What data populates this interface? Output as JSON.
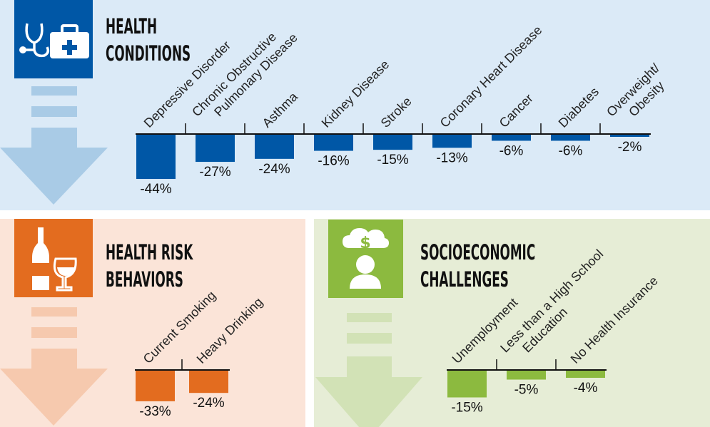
{
  "chart_data": [
    {
      "type": "bar",
      "title": "HEALTH CONDITIONS",
      "title_lines": [
        "HEALTH",
        "CONDITIONS"
      ],
      "color": "#0057a6",
      "icon": "stethoscope-medkit-icon",
      "categories": [
        [
          "Depressive Disorder"
        ],
        [
          "Chronic Obstructive",
          "Pulmonary Disease"
        ],
        [
          "Asthma"
        ],
        [
          "Kidney Disease"
        ],
        [
          "Stroke"
        ],
        [
          "Coronary Heart Disease"
        ],
        [
          "Cancer"
        ],
        [
          "Diabetes"
        ],
        [
          "Overweight/",
          "Obesity"
        ]
      ],
      "values": [
        -44,
        -27,
        -24,
        -16,
        -15,
        -13,
        -6,
        -6,
        -2
      ],
      "labels": [
        "-44%",
        "-27%",
        "-24%",
        "-16%",
        "-15%",
        "-13%",
        "-6%",
        "-6%",
        "-2%"
      ]
    },
    {
      "type": "bar",
      "title": "HEALTH RISK BEHAVIORS",
      "title_lines": [
        "HEALTH RISK",
        "BEHAVIORS"
      ],
      "color": "#e36c1f",
      "icon": "bottle-wineglass-icon",
      "categories": [
        [
          "Current Smoking"
        ],
        [
          "Heavy Drinking"
        ]
      ],
      "values": [
        -33,
        -24
      ],
      "labels": [
        "-33%",
        "-24%"
      ]
    },
    {
      "type": "bar",
      "title": "SOCIOECONOMIC CHALLENGES",
      "title_lines": [
        "SOCIOECONOMIC",
        "CHALLENGES"
      ],
      "color": "#8cba3f",
      "icon": "person-money-cloud-icon",
      "categories": [
        [
          "Unemployment"
        ],
        [
          "Less than a High School",
          "Education"
        ],
        [
          "No Health Insurance"
        ]
      ],
      "values": [
        -15,
        -5,
        -4
      ],
      "labels": [
        "-15%",
        "-5%",
        "-4%"
      ]
    }
  ]
}
